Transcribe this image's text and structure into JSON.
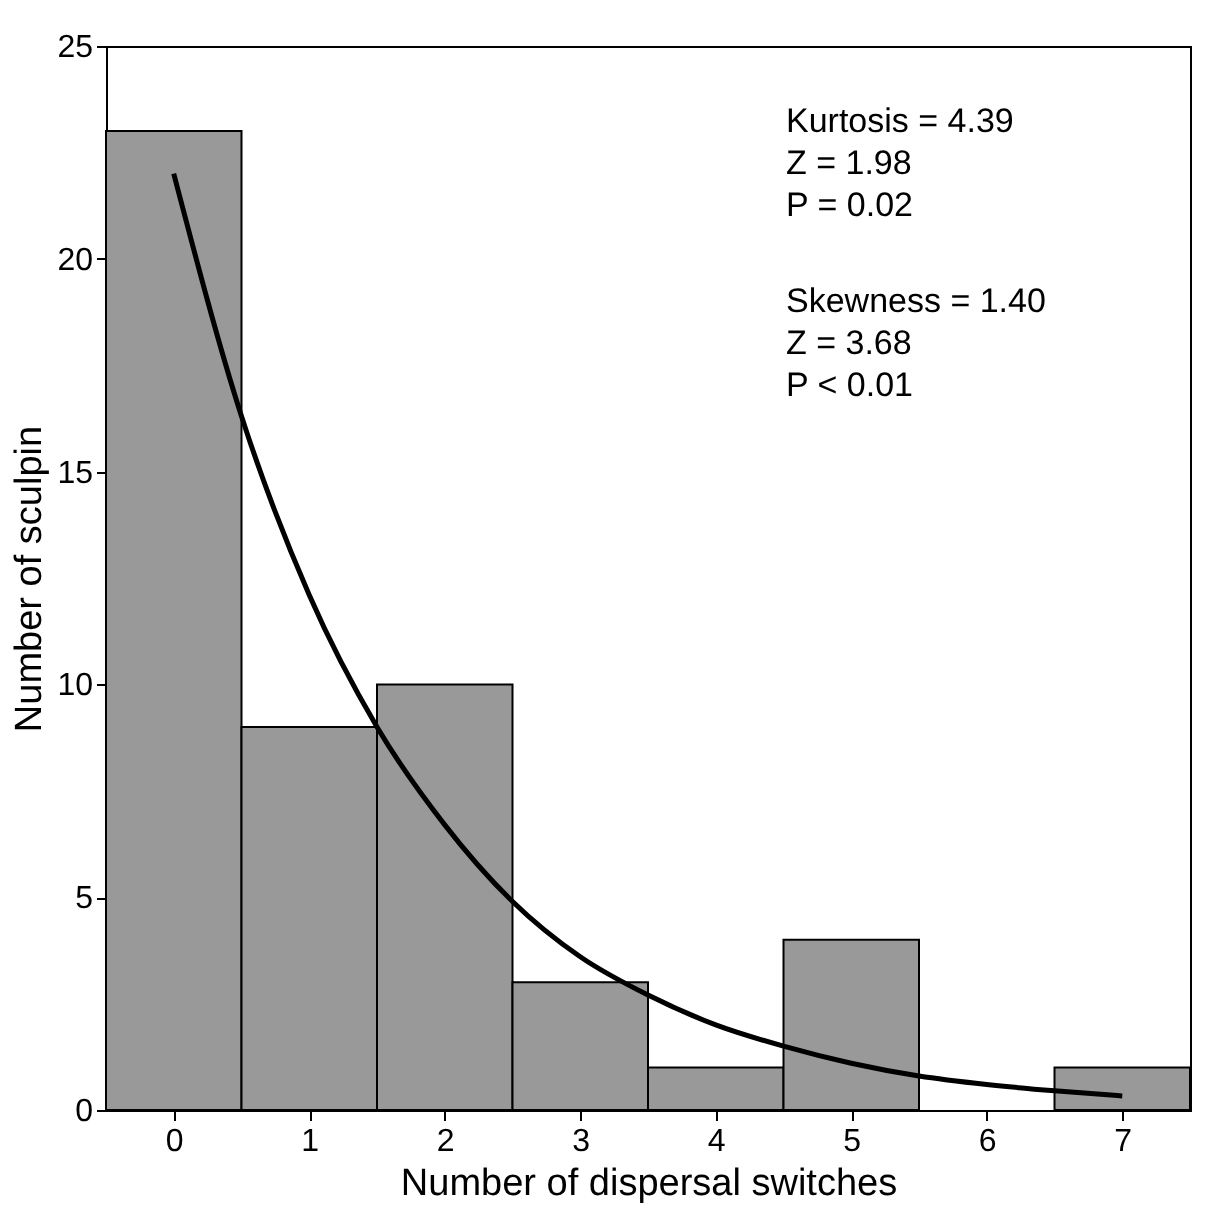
{
  "chart_data": {
    "type": "histogram",
    "xlabel": "Number of dispersal switches",
    "ylabel": "Number of sculpin",
    "bins": [
      -0.5,
      0.5,
      1.5,
      2.5,
      3.5,
      4.5,
      5.5,
      6.5,
      7.5
    ],
    "values": [
      23,
      9,
      10,
      3,
      1,
      4,
      0,
      1
    ],
    "color": "#999999",
    "series": [
      {
        "type": "line",
        "color": "#000000",
        "x": [
          0,
          0.5,
          1,
          1.5,
          2,
          2.5,
          3,
          3.5,
          4,
          4.5,
          5,
          5.5,
          6,
          6.5,
          7
        ],
        "values": [
          22,
          16.3,
          12.1,
          9,
          6.7,
          4.9,
          3.6,
          2.7,
          2,
          1.5,
          1.1,
          0.8,
          0.6,
          0.45,
          0.33
        ]
      }
    ],
    "xlim": [
      -0.5,
      7.5
    ],
    "xticks": [
      0,
      1,
      2,
      3,
      4,
      5,
      6,
      7
    ],
    "ylim": [
      0,
      25
    ],
    "yticks": [
      0,
      5,
      10,
      15,
      20,
      25
    ],
    "annotations": [
      "Kurtosis = 4.39\nZ = 1.98\nP = 0.02",
      "Skewness = 1.40\nZ = 3.68\nP < 0.01"
    ]
  }
}
